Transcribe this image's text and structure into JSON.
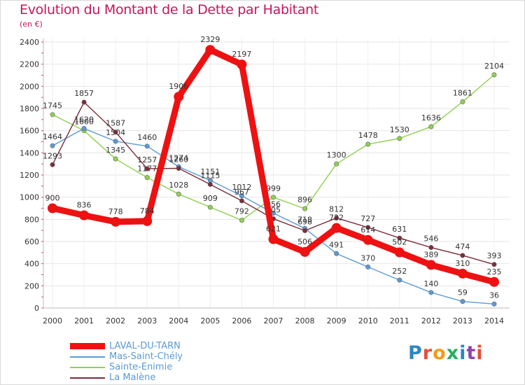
{
  "title": "Evolution du Montant de la Dette par Habitant",
  "subtitle": "(en €)",
  "logo": {
    "text": "Proxiti",
    "letters": [
      {
        "ch": "P",
        "color": "#2e86c1"
      },
      {
        "ch": "r",
        "color": "#e74c3c"
      },
      {
        "ch": "o",
        "color": "#f39c12"
      },
      {
        "ch": "x",
        "color": "#27ae60"
      },
      {
        "ch": "i",
        "color": "#2e86c1"
      },
      {
        "ch": "t",
        "color": "#8e44ad"
      },
      {
        "ch": "i",
        "color": "#e74c3c"
      }
    ]
  },
  "chart_data": {
    "type": "line",
    "title": "Evolution du Montant de la Dette par Habitant",
    "subtitle": "(en €)",
    "xlabel": "",
    "ylabel": "",
    "x": [
      "2000",
      "2001",
      "2002",
      "2003",
      "2004",
      "2005",
      "2006",
      "2007",
      "2008",
      "2009",
      "2010",
      "2011",
      "2012",
      "2013",
      "2014"
    ],
    "ylim": [
      0,
      2400
    ],
    "yticks": [
      "0",
      "200",
      "400",
      "600",
      "800",
      "1000",
      "1200",
      "1400",
      "1600",
      "1800",
      "2000",
      "2200",
      "2400"
    ],
    "grid": true,
    "legend": "bottom-left",
    "series": [
      {
        "name": "Sainte-Enimie",
        "color": "#8fd14f",
        "values": [
          1745,
          1600,
          1345,
          1177,
          1028,
          909,
          792,
          999,
          896,
          1300,
          1478,
          1530,
          1636,
          1861,
          2104
        ],
        "labels": [
          "1745",
          "1600",
          "1345",
          "1177",
          "1028",
          "909",
          "792",
          "999",
          "896",
          "1300",
          "1478",
          "1530",
          "1636",
          "1861",
          "2104"
        ]
      },
      {
        "name": "Mas-Saint-Chély",
        "color": "#5b9bd5",
        "values": [
          1464,
          1620,
          1504,
          1460,
          1274,
          1151,
          1012,
          856,
          718,
          491,
          370,
          252,
          140,
          59,
          36
        ],
        "labels": [
          "1464",
          "1620",
          "1504",
          "1460",
          "1274",
          "1151",
          "1012",
          "856",
          "718",
          "491",
          "370",
          "252",
          "140",
          "59",
          "36"
        ]
      },
      {
        "name": "La Malène",
        "color": "#7b2c3a",
        "values": [
          1293,
          1857,
          1587,
          1257,
          1260,
          1115,
          967,
          805,
          698,
          812,
          727,
          631,
          546,
          474,
          393
        ],
        "labels": [
          "1293",
          "1857",
          "1587",
          "1257",
          "1260",
          "1115",
          "967",
          "805",
          "698",
          "812",
          "727",
          "631",
          "546",
          "474",
          "393"
        ]
      },
      {
        "name": "LAVAL-DU-TARN",
        "color": "#ee1111",
        "values": [
          900,
          836,
          778,
          784,
          1906,
          2329,
          2197,
          621,
          506,
          722,
          614,
          502,
          389,
          310,
          235
        ],
        "labels": [
          "900",
          "836",
          "778",
          "784",
          "1906",
          "2329",
          "2197",
          "621",
          "506",
          "722",
          "614",
          "502",
          "389",
          "310",
          "235"
        ]
      }
    ],
    "legend_order": [
      "LAVAL-DU-TARN",
      "Mas-Saint-Chély",
      "Sainte-Enimie",
      "La Malène"
    ]
  }
}
